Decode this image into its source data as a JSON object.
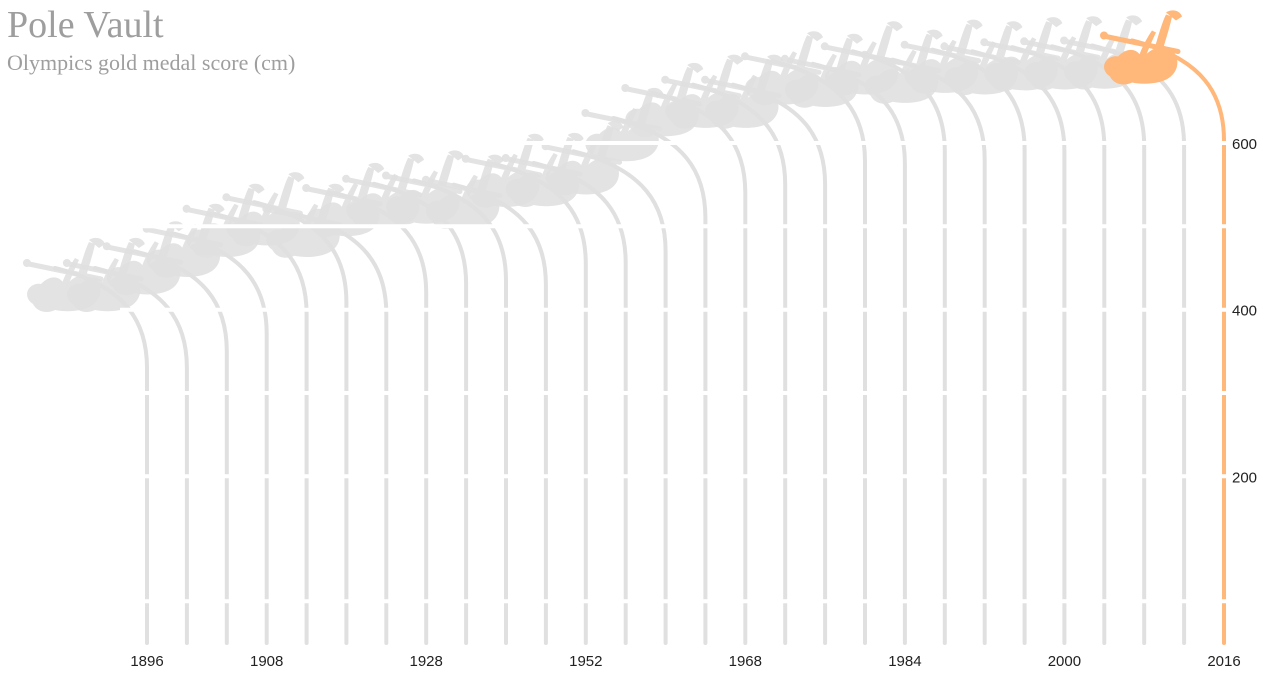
{
  "chart_data": {
    "type": "bar",
    "title": "Pole Vault",
    "subtitle": "Olympics gold medal score (cm)",
    "xlabel": "",
    "ylabel": "",
    "x": [
      1896,
      1900,
      1904,
      1908,
      1912,
      1920,
      1924,
      1928,
      1932,
      1936,
      1948,
      1952,
      1956,
      1960,
      1964,
      1968,
      1972,
      1976,
      1980,
      1984,
      1988,
      1992,
      1996,
      2000,
      2004,
      2008,
      2012,
      2016
    ],
    "x_tick_labels": [
      "1896",
      "1908",
      "1928",
      "1952",
      "1968",
      "1984",
      "2000",
      "2016"
    ],
    "values": [
      330,
      330,
      350,
      371,
      395,
      409,
      395,
      420,
      431,
      435,
      430,
      455,
      456,
      470,
      510,
      540,
      550,
      550,
      578,
      575,
      590,
      580,
      592,
      590,
      595,
      596,
      597,
      603
    ],
    "ylim": [
      0,
      600
    ],
    "y_ticks": [
      200,
      400,
      600
    ],
    "y_axis_position": "right",
    "highlight": {
      "year": 2016,
      "color": "#ffb77a"
    },
    "series_color": "#e0e0e0"
  }
}
